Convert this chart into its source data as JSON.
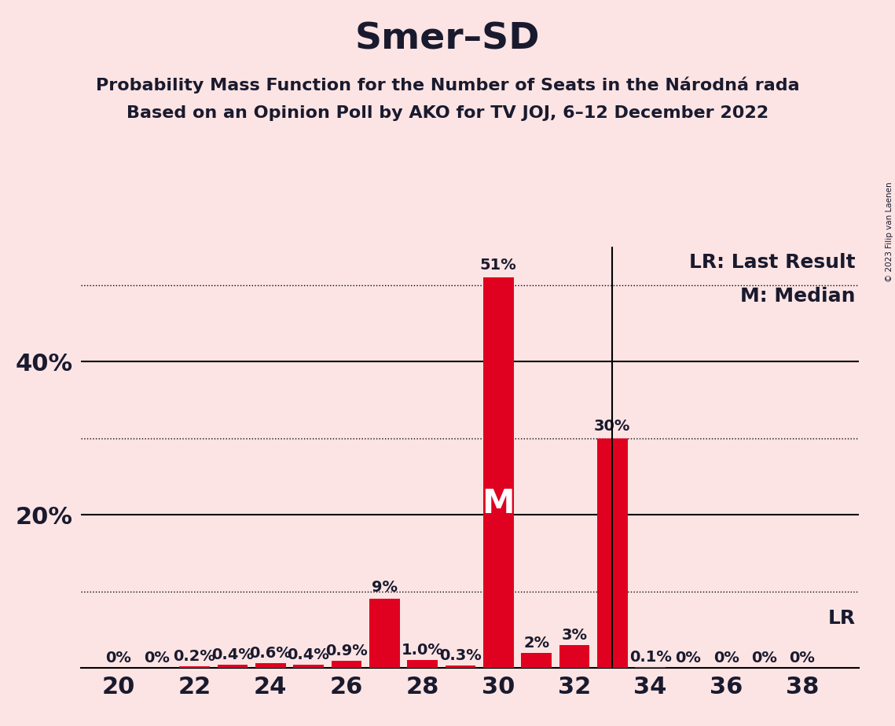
{
  "title": "Smer–SD",
  "subtitle1": "Probability Mass Function for the Number of Seats in the Národná rada",
  "subtitle2": "Based on an Opinion Poll by AKO for TV JOJ, 6–12 December 2022",
  "copyright": "© 2023 Filip van Laenen",
  "background_color": "#fce4e4",
  "bar_color": "#e00020",
  "seats": [
    20,
    21,
    22,
    23,
    24,
    25,
    26,
    27,
    28,
    29,
    30,
    31,
    32,
    33,
    34,
    35,
    36,
    37,
    38
  ],
  "probabilities": [
    0.0,
    0.0,
    0.2,
    0.4,
    0.6,
    0.4,
    0.9,
    9.0,
    1.0,
    0.3,
    51.0,
    2.0,
    3.0,
    30.0,
    0.1,
    0.0,
    0.0,
    0.0,
    0.0
  ],
  "labels": [
    "0%",
    "0%",
    "0.2%",
    "0.4%",
    "0.6%",
    "0.4%",
    "0.9%",
    "9%",
    "1.0%",
    "0.3%",
    "51%",
    "2%",
    "3%",
    "30%",
    "0.1%",
    "0%",
    "0%",
    "0%",
    "0%"
  ],
  "median_seat": 30,
  "lr_seat": 33,
  "xlim": [
    19.0,
    39.5
  ],
  "ylim": [
    0,
    55
  ],
  "yticks_solid": [
    20,
    40
  ],
  "ytick_labels_solid": [
    "20%",
    "40%"
  ],
  "yticks_dotted": [
    10,
    30,
    50
  ],
  "xticks": [
    20,
    22,
    24,
    26,
    28,
    30,
    32,
    34,
    36,
    38
  ],
  "lr_label": "LR: Last Result",
  "median_label": "M: Median",
  "lr_text": "LR",
  "median_text": "M",
  "title_fontsize": 34,
  "subtitle_fontsize": 16,
  "axis_fontsize": 22,
  "label_fontsize": 14,
  "legend_fontsize": 18,
  "text_color": "#1a1a2e"
}
